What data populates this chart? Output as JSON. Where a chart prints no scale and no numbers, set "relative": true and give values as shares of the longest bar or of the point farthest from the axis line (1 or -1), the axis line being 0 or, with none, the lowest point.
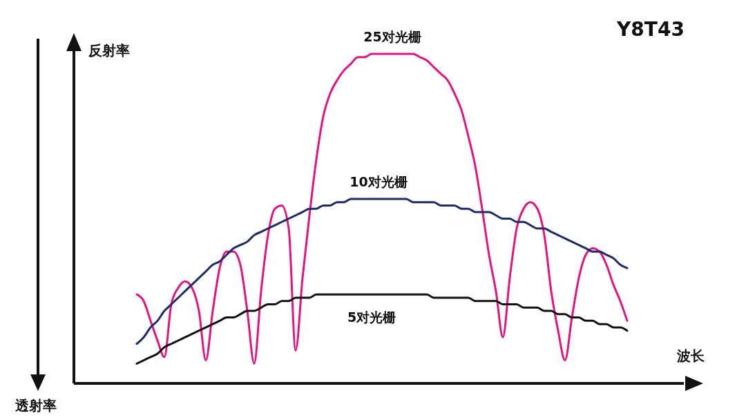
{
  "chart_data": {
    "type": "line",
    "relative": true,
    "xlabel": "波长",
    "ylabel": "反射率",
    "annotations": [
      "Y8T43",
      "透射率"
    ],
    "categories": [
      null,
      null,
      null,
      null,
      null,
      null,
      null,
      null,
      null,
      null,
      null,
      null,
      null,
      null,
      null,
      null,
      null,
      null,
      null,
      null,
      null,
      null,
      null,
      null,
      null,
      null,
      null,
      null,
      null,
      null,
      null,
      null,
      null,
      null,
      null,
      null,
      null,
      null,
      null,
      null,
      null,
      null,
      null,
      null,
      null,
      null,
      null,
      null,
      null,
      null,
      null,
      null,
      null,
      null,
      null,
      null,
      null,
      null,
      null,
      null,
      null,
      null,
      null,
      null,
      null,
      null,
      null,
      null,
      null,
      null,
      null,
      null
    ],
    "series": [
      {
        "name": "25对光栅",
        "color": "#e4147f",
        "values": [
          0.27,
          0.25,
          0.19,
          0.13,
          0.08,
          0.24,
          0.29,
          0.31,
          0.29,
          0.22,
          0.07,
          0.22,
          0.35,
          0.4,
          0.4,
          0.36,
          0.22,
          0.06,
          0.28,
          0.45,
          0.53,
          0.54,
          0.47,
          0.1,
          0.32,
          0.51,
          0.68,
          0.81,
          0.88,
          0.92,
          0.95,
          0.97,
          0.99,
          0.99,
          1.0,
          1.0,
          1,
          1,
          1,
          1,
          1.0,
          0.99,
          0.98,
          0.96,
          0.94,
          0.92,
          0.88,
          0.83,
          0.75,
          0.66,
          0.53,
          0.39,
          0.28,
          0.14,
          0.32,
          0.47,
          0.53,
          0.55,
          0.53,
          0.45,
          0.28,
          0.16,
          0.07,
          0.2,
          0.32,
          0.39,
          0.41,
          0.4,
          0.36,
          0.3,
          0.25,
          0.19
        ]
      },
      {
        "name": "10对光栅",
        "color": "#1f2a6b",
        "values": [
          0.12,
          0.14,
          0.17,
          0.19,
          0.22,
          0.24,
          0.26,
          0.28,
          0.3,
          0.32,
          0.34,
          0.36,
          0.37,
          0.39,
          0.41,
          0.42,
          0.43,
          0.45,
          0.46,
          0.47,
          0.48,
          0.49,
          0.5,
          0.51,
          0.52,
          0.53,
          0.53,
          0.54,
          0.54,
          0.55,
          0.55,
          0.56,
          0.56,
          0.56,
          0.56,
          0.56,
          0.56,
          0.56,
          0.56,
          0.56,
          0.55,
          0.55,
          0.55,
          0.55,
          0.54,
          0.54,
          0.54,
          0.53,
          0.53,
          0.52,
          0.52,
          0.52,
          0.51,
          0.5,
          0.5,
          0.49,
          0.49,
          0.48,
          0.47,
          0.47,
          0.46,
          0.45,
          0.44,
          0.43,
          0.42,
          0.41,
          0.4,
          0.4,
          0.39,
          0.38,
          0.36,
          0.35
        ]
      },
      {
        "name": "5对光栅",
        "color": "#111111",
        "values": [
          0.06,
          0.07,
          0.08,
          0.09,
          0.11,
          0.12,
          0.13,
          0.14,
          0.15,
          0.16,
          0.17,
          0.18,
          0.19,
          0.2,
          0.2,
          0.21,
          0.22,
          0.22,
          0.23,
          0.24,
          0.24,
          0.25,
          0.25,
          0.26,
          0.26,
          0.26,
          0.27,
          0.27,
          0.27,
          0.27,
          0.27,
          0.27,
          0.27,
          0.27,
          0.27,
          0.27,
          0.27,
          0.27,
          0.27,
          0.27,
          0.27,
          0.27,
          0.27,
          0.26,
          0.26,
          0.26,
          0.26,
          0.26,
          0.26,
          0.25,
          0.25,
          0.25,
          0.25,
          0.24,
          0.24,
          0.24,
          0.23,
          0.23,
          0.23,
          0.22,
          0.22,
          0.21,
          0.21,
          0.2,
          0.2,
          0.19,
          0.19,
          0.18,
          0.18,
          0.17,
          0.17,
          0.16
        ]
      }
    ]
  }
}
